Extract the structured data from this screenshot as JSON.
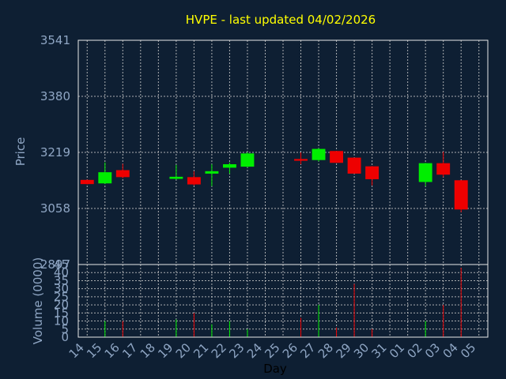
{
  "chart_data": {
    "type": "candlestick",
    "title": "HVPE - last updated 04/02/2026",
    "xlabel": "Day",
    "ylabel": "Price",
    "volume_label": "Volume (0000)",
    "ylim": [
      2897,
      3541
    ],
    "yticks": [
      2897,
      3058,
      3219,
      3380,
      3541
    ],
    "yticks_top_label": "3541",
    "volume_ylim": [
      0,
      45
    ],
    "volume_yticks": [
      0,
      5,
      10,
      15,
      20,
      25,
      30,
      35,
      40,
      45
    ],
    "grid": true,
    "colors": {
      "background": "#0e1f33",
      "up": "#00ee00",
      "down": "#ee0000",
      "title": "#ffff00",
      "axis_text": "#8fa6c4",
      "grid": "#c8c8c8"
    },
    "days": [
      "14",
      "15",
      "16",
      "17",
      "18",
      "19",
      "20",
      "21",
      "22",
      "23",
      "24",
      "25",
      "26",
      "27",
      "28",
      "29",
      "30",
      "31",
      "01",
      "02",
      "03",
      "04",
      "05"
    ],
    "candles": [
      {
        "day": "14",
        "open": 3140,
        "close": 3128,
        "high": 3141,
        "low": 3127,
        "volume": 0
      },
      {
        "day": "15",
        "open": 3130,
        "close": 3162,
        "high": 3190,
        "low": 3128,
        "volume": 10
      },
      {
        "day": "16",
        "open": 3168,
        "close": 3148,
        "high": 3186,
        "low": 3145,
        "volume": 10
      },
      {
        "day": "19",
        "open": 3143,
        "close": 3149,
        "high": 3183,
        "low": 3141,
        "volume": 11
      },
      {
        "day": "20",
        "open": 3148,
        "close": 3127,
        "high": 3165,
        "low": 3124,
        "volume": 15
      },
      {
        "day": "21",
        "open": 3158,
        "close": 3165,
        "high": 3185,
        "low": 3122,
        "volume": 8
      },
      {
        "day": "22",
        "open": 3175,
        "close": 3185,
        "high": 3190,
        "low": 3158,
        "volume": 10
      },
      {
        "day": "23",
        "open": 3178,
        "close": 3216,
        "high": 3220,
        "low": 3176,
        "volume": 5
      },
      {
        "day": "26",
        "open": 3200,
        "close": 3195,
        "high": 3219,
        "low": 3185,
        "volume": 12
      },
      {
        "day": "27",
        "open": 3197,
        "close": 3229,
        "high": 3231,
        "low": 3193,
        "volume": 20
      },
      {
        "day": "28",
        "open": 3223,
        "close": 3189,
        "high": 3223,
        "low": 3189,
        "volume": 6
      },
      {
        "day": "29",
        "open": 3204,
        "close": 3158,
        "high": 3204,
        "low": 3158,
        "volume": 33
      },
      {
        "day": "30",
        "open": 3179,
        "close": 3142,
        "high": 3180,
        "low": 3124,
        "volume": 5
      },
      {
        "day": "02",
        "open": 3134,
        "close": 3188,
        "high": 3189,
        "low": 3122,
        "volume": 10
      },
      {
        "day": "03",
        "open": 3188,
        "close": 3155,
        "high": 3221,
        "low": 3148,
        "volume": 20
      },
      {
        "day": "04",
        "open": 3139,
        "close": 3055,
        "high": 3139,
        "low": 3047,
        "volume": 43
      }
    ]
  }
}
